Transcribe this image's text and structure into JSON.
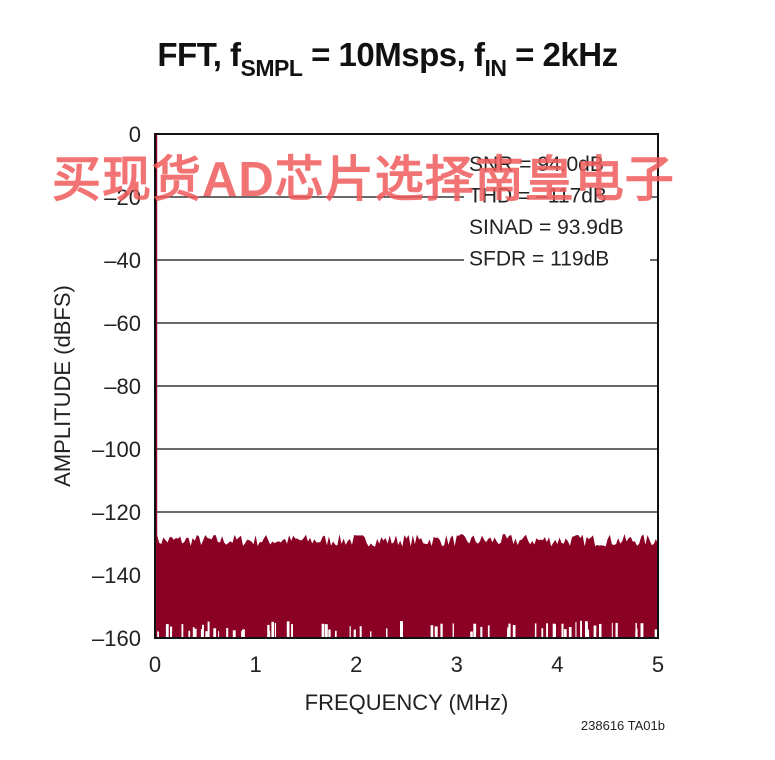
{
  "title": {
    "part1": "FFT, f",
    "sub1": "SMPL",
    "part2": " = 10Msps, f",
    "sub2": "IN",
    "part3": " = 2kHz"
  },
  "watermark": "买现货AD芯片选择南皇电子",
  "figure_code": "238616 TA01b",
  "colors": {
    "spectrum": "#8b0025",
    "frame": "#111111",
    "grid": "#111111",
    "watermark": "#f05a5a"
  },
  "chart_data": {
    "type": "area",
    "title": "FFT, fSMPL = 10Msps, fIN = 2kHz",
    "xlabel": "FREQUENCY (MHz)",
    "ylabel": "AMPLITUDE (dBFS)",
    "xlim": [
      0,
      5
    ],
    "ylim": [
      -160,
      0
    ],
    "x_ticks": [
      0,
      1,
      2,
      3,
      4,
      5
    ],
    "y_ticks": [
      0,
      -20,
      -40,
      -60,
      -80,
      -100,
      -120,
      -140,
      -160
    ],
    "y_tick_labels": [
      "0",
      "–20",
      "–40",
      "–60",
      "–80",
      "–100",
      "–120",
      "–140",
      "–160"
    ],
    "x_tick_labels": [
      "0",
      "1",
      "2",
      "3",
      "4",
      "5"
    ],
    "grid": true,
    "series": [
      {
        "fundamental": {
          "x": 0.002,
          "y": 0
        },
        "noise_floor_top": -129,
        "noise_floor_top_range": [
          -131,
          -127
        ],
        "noise_floor_bottom": -160
      }
    ],
    "annotations": [
      "SNR = 94.0dB",
      "THD = –117dB",
      "SINAD = 93.9dB",
      "SFDR = 119dB"
    ]
  }
}
